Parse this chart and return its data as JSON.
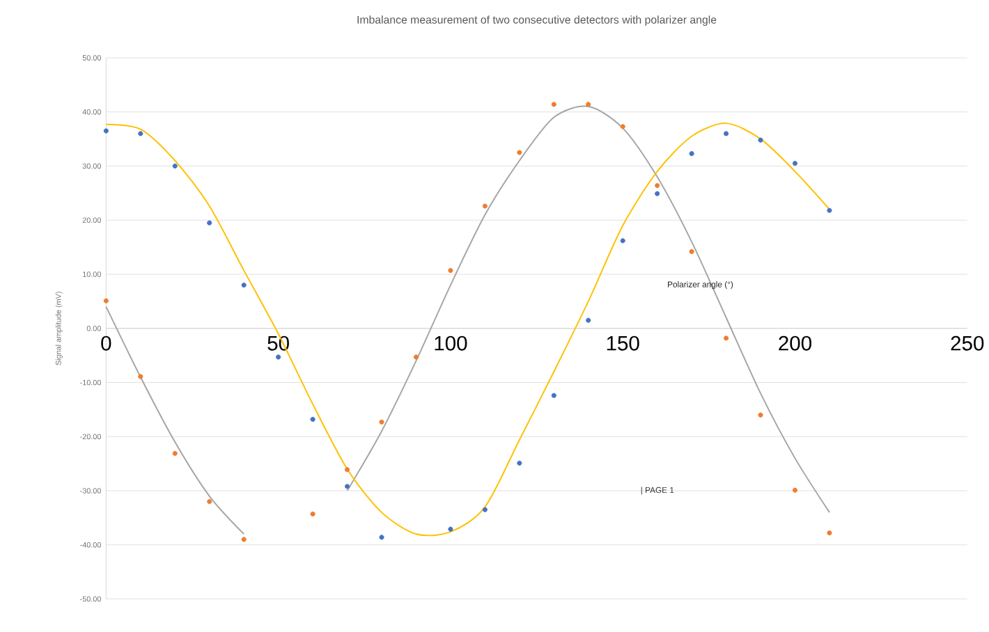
{
  "chart_data": {
    "type": "scatter",
    "title": "Imbalance measurement of two consecutive detectors with  polarizer angle",
    "xlabel": "Polarizer angle (°)",
    "ylabel": "Signal amplitude (mV)",
    "x": [
      0,
      10,
      20,
      30,
      40,
      50,
      60,
      70,
      80,
      90,
      100,
      110,
      120,
      130,
      140,
      150,
      160,
      170,
      180,
      190,
      200,
      210
    ],
    "series": [
      {
        "color": "#4472c4",
        "values": [
          36.5,
          36.0,
          30.0,
          19.5,
          8.0,
          -5.3,
          -16.8,
          -29.2,
          -38.6,
          null,
          -37.1,
          -33.5,
          -24.9,
          -12.4,
          1.5,
          16.2,
          24.9,
          32.3,
          36.0,
          34.8,
          30.5,
          21.8
        ]
      },
      {
        "color": "#ed7d31",
        "values": [
          5.1,
          -8.9,
          -23.1,
          -32.0,
          -39.0,
          null,
          -34.3,
          -26.1,
          -17.3,
          -5.3,
          10.7,
          22.6,
          32.5,
          41.4,
          41.4,
          37.3,
          26.4,
          14.2,
          -1.8,
          -16.0,
          -29.9,
          -37.8
        ]
      },
      {
        "type": "line",
        "color": "#a5a5a5",
        "marker": "none",
        "values": [
          4,
          -9,
          -21,
          -31,
          -38,
          null,
          null,
          -30,
          -19,
          -6,
          8,
          21,
          31,
          39,
          41,
          37,
          28,
          16,
          2,
          -12,
          -24,
          -34
        ]
      },
      {
        "type": "line",
        "color": "#ffc000",
        "marker": "none",
        "values": [
          37.7,
          36.8,
          31,
          22.6,
          10.7,
          -1,
          -14,
          -26,
          -34,
          -38,
          -37.6,
          -33,
          -20.6,
          -8,
          5,
          19,
          29,
          35.5,
          37.9,
          35,
          29,
          22
        ]
      }
    ],
    "xlim": [
      0,
      250
    ],
    "xticks": [
      0,
      50,
      100,
      150,
      200,
      250
    ],
    "ylim": [
      -50,
      50
    ],
    "yticks": [
      {
        "value": -50,
        "label": "-50.00"
      },
      {
        "value": -40,
        "label": "-40.00"
      },
      {
        "value": -30,
        "label": "-30.00"
      },
      {
        "value": -20,
        "label": "-20.00"
      },
      {
        "value": -10,
        "label": "-10.00"
      },
      {
        "value": 0,
        "label": "0.00"
      },
      {
        "value": 10,
        "label": "10.00"
      },
      {
        "value": 20,
        "label": "20.00"
      },
      {
        "value": 30,
        "label": "30.00"
      },
      {
        "value": 40,
        "label": "40.00"
      },
      {
        "value": 50,
        "label": "50.00"
      }
    ],
    "grid": "y",
    "marker": "circle",
    "annotations": [
      "| PAGE 1"
    ]
  }
}
